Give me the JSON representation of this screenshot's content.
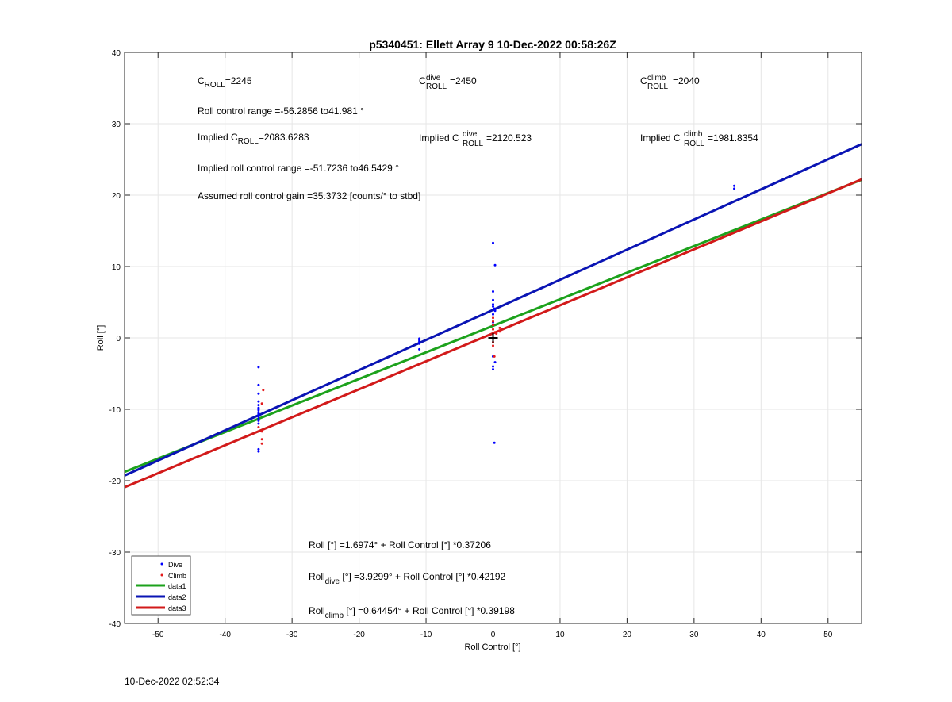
{
  "chart_data": {
    "type": "scatter",
    "title": "p5340451: Ellett Array 9 10-Dec-2022 00:58:26Z",
    "xlabel": "Roll Control [°]",
    "ylabel": "Roll [°]",
    "xlim": [
      -55,
      55
    ],
    "ylim": [
      -40,
      40
    ],
    "x_ticks": [
      -50,
      -40,
      -30,
      -20,
      -10,
      0,
      10,
      20,
      30,
      40,
      50
    ],
    "y_ticks": [
      -40,
      -30,
      -20,
      -10,
      0,
      10,
      20,
      30,
      40
    ],
    "grid": true,
    "legend_position": "bottom-left",
    "series": [
      {
        "name": "Dive",
        "kind": "points",
        "color": "#0000ff",
        "points": [
          [
            -35,
            -4.1
          ],
          [
            -35,
            -6.6
          ],
          [
            -35,
            -7.8
          ],
          [
            -35,
            -8.9
          ],
          [
            -35,
            -9.4
          ],
          [
            -35,
            -9.8
          ],
          [
            -35,
            -10.1
          ],
          [
            -35,
            -10.4
          ],
          [
            -35,
            -10.6
          ],
          [
            -35,
            -10.8
          ],
          [
            -35,
            -11.0
          ],
          [
            -35,
            -11.3
          ],
          [
            -35,
            -11.6
          ],
          [
            -35,
            -12.0
          ],
          [
            -35,
            -15.6
          ],
          [
            -35,
            -15.9
          ],
          [
            -11,
            -0.1
          ],
          [
            -11,
            -0.3
          ],
          [
            -11,
            -0.5
          ],
          [
            -11,
            -0.8
          ],
          [
            -11,
            -1.6
          ],
          [
            0,
            13.3
          ],
          [
            0.3,
            10.2
          ],
          [
            0,
            6.5
          ],
          [
            0,
            5.3
          ],
          [
            0,
            4.7
          ],
          [
            0,
            4.4
          ],
          [
            0.2,
            4.1
          ],
          [
            0.3,
            3.8
          ],
          [
            0,
            3.3
          ],
          [
            0,
            2.2
          ],
          [
            0,
            -2.6
          ],
          [
            0,
            -4.0
          ],
          [
            0,
            -4.4
          ],
          [
            0.3,
            -3.4
          ],
          [
            0.2,
            -14.7
          ],
          [
            36,
            21.3
          ],
          [
            36,
            20.9
          ]
        ]
      },
      {
        "name": "Climb",
        "kind": "points",
        "color": "#e41a1c",
        "points": [
          [
            -34.3,
            -7.3
          ],
          [
            -34.5,
            -9.2
          ],
          [
            -34.5,
            -13.1
          ],
          [
            -35,
            -12.5
          ],
          [
            -34.5,
            -14.2
          ],
          [
            -34.5,
            -14.8
          ],
          [
            0,
            2.8
          ],
          [
            0,
            2.3
          ],
          [
            0,
            1.8
          ],
          [
            0,
            1.2
          ],
          [
            0.3,
            0.8
          ],
          [
            0.5,
            0.6
          ],
          [
            1,
            1.4
          ],
          [
            1,
            0.9
          ],
          [
            0,
            -0.6
          ],
          [
            0,
            -1.1
          ],
          [
            0.2,
            -2.6
          ]
        ]
      },
      {
        "name": "data1",
        "kind": "line",
        "color": "#1ca21c",
        "x": [
          -55,
          55
        ],
        "y": [
          -18.7663,
          22.1607
        ]
      },
      {
        "name": "data2",
        "kind": "line",
        "color": "#0a14b4",
        "x": [
          -55,
          55
        ],
        "y": [
          -19.2757,
          27.1355
        ]
      },
      {
        "name": "data3",
        "kind": "line",
        "color": "#d21a1a",
        "x": [
          -55,
          55
        ],
        "y": [
          -20.9144,
          22.2033
        ]
      }
    ],
    "annotations": {
      "c_roll": {
        "main": "C",
        "sub": "ROLL",
        "value": "=2245"
      },
      "c_roll_dive": {
        "main": "C",
        "sup": "dive",
        "sub": "ROLL",
        "value": "=2450"
      },
      "c_roll_climb": {
        "main": "C",
        "sup": "climb",
        "sub": "ROLL",
        "value": "=2040"
      },
      "roll_control_range": "Roll control range =-56.2856 to41.981 °",
      "implied_c_roll": {
        "prefix": "Implied C",
        "sub": "ROLL",
        "value": "=2083.6283"
      },
      "implied_c_roll_dive": {
        "prefix": "Implied C",
        "sup": "dive",
        "sub": "ROLL",
        "value": "=2120.523"
      },
      "implied_c_roll_climb": {
        "prefix": "Implied C",
        "sup": "climb",
        "sub": "ROLL",
        "value": "=1981.8354"
      },
      "implied_range": "Implied roll control range =-51.7236 to46.5429 °",
      "gain": "Assumed roll control gain =35.3732 [counts/° to stbd]",
      "fit_all": {
        "main": "Roll",
        "sub": "",
        "rest": " [°] =1.6974° + Roll Control [°] *0.37206"
      },
      "fit_dive": {
        "main": "Roll",
        "sub": "dive",
        "rest": " [°] =3.9299° + Roll Control [°] *0.42192"
      },
      "fit_climb": {
        "main": "Roll",
        "sub": "climb",
        "rest": " [°] =0.64454° + Roll Control [°] *0.39198"
      }
    },
    "marker": {
      "symbol": "+",
      "x": 0,
      "y": 0
    }
  },
  "footer": {
    "timestamp": "10-Dec-2022 02:52:34"
  }
}
